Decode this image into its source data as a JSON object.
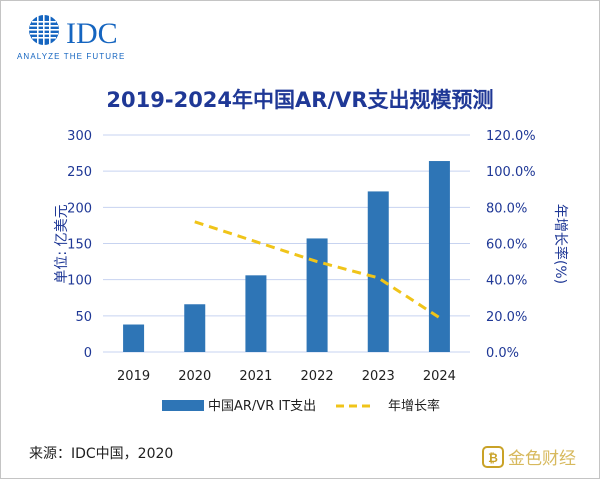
{
  "logo": {
    "brand": "IDC",
    "tagline": "ANALYZE THE FUTURE"
  },
  "watermark": {
    "text": "金色财经"
  },
  "source": "来源：IDC中国，2020",
  "colors": {
    "bar": "#2e75b6",
    "line": "#f0c419",
    "title": "#1f3896",
    "axis_label": "#1f3896",
    "tick": "#1f3896",
    "grid": "#c7d3f0",
    "logo": "#1565c0"
  },
  "chart_data": {
    "type": "bar",
    "title": "2019-2024年中国AR/VR支出规模预测",
    "categories": [
      "2019",
      "2020",
      "2021",
      "2022",
      "2023",
      "2024"
    ],
    "series": [
      {
        "name": "中国AR/VR IT支出",
        "type": "bar",
        "axis": "left",
        "values": [
          38,
          66,
          106,
          157,
          222,
          264
        ]
      },
      {
        "name": "年增长率",
        "type": "line",
        "style": "dashed",
        "axis": "right",
        "values": [
          null,
          72.0,
          61.0,
          50.0,
          41.0,
          19.0
        ]
      }
    ],
    "ylabel": "单位: 亿美元",
    "y2label": "年增长率(%)",
    "ylim": [
      0,
      300
    ],
    "y2lim": [
      0,
      120
    ],
    "yticks": [
      "0",
      "50",
      "100",
      "150",
      "200",
      "250",
      "300"
    ],
    "y2ticks": [
      "0.0%",
      "20.0%",
      "40.0%",
      "60.0%",
      "80.0%",
      "100.0%",
      "120.0%"
    ],
    "grid": true,
    "legend": "bottom"
  }
}
